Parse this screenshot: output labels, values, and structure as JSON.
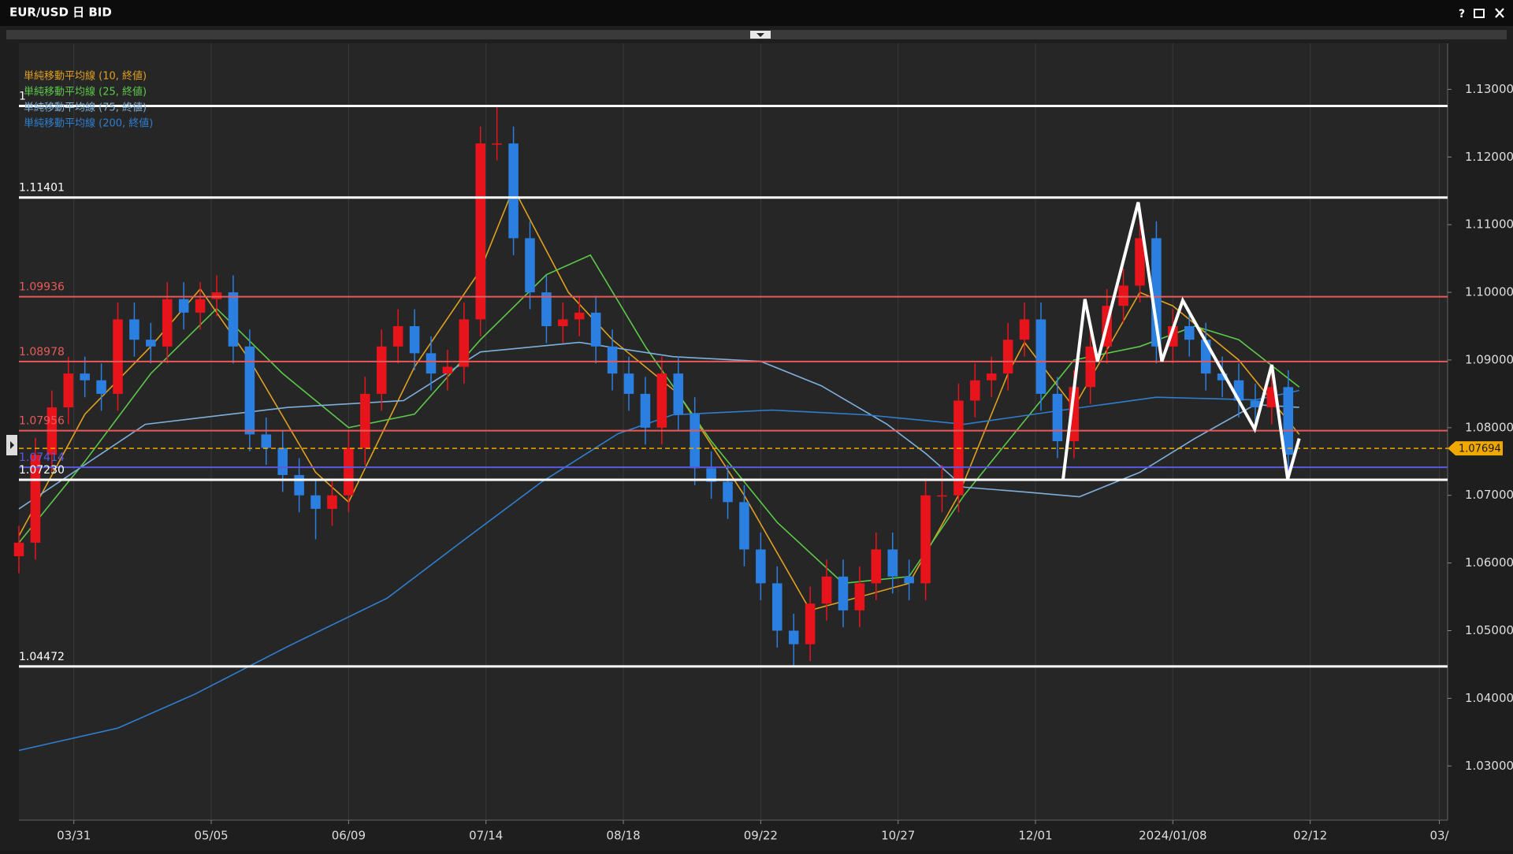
{
  "window": {
    "title": "EUR/USD 日 BID",
    "help": "?"
  },
  "chart_data": {
    "type": "candlestick",
    "up_color": "#e8141c",
    "down_color": "#2a7fe0",
    "x": [
      0,
      3,
      6,
      9,
      12,
      15,
      18,
      21,
      24,
      27,
      30,
      33,
      36,
      39,
      42,
      45,
      48,
      51,
      54,
      57,
      60,
      63,
      66,
      69,
      72,
      75,
      78,
      81,
      84,
      87,
      90,
      93,
      96,
      99,
      102,
      105,
      108,
      111,
      114,
      117,
      120,
      123,
      126,
      129,
      132,
      135,
      138,
      141,
      144,
      147,
      150,
      153,
      156,
      159,
      162,
      165,
      168,
      171,
      174,
      177,
      180,
      183,
      186,
      189,
      192,
      195,
      198,
      201,
      204,
      207,
      210,
      213,
      216,
      219,
      222,
      225,
      228,
      231
    ],
    "ohlc": [
      [
        1.061,
        1.0655,
        1.0585,
        1.063
      ],
      [
        1.063,
        1.0785,
        1.0605,
        1.076
      ],
      [
        1.076,
        1.0855,
        1.0735,
        1.083
      ],
      [
        1.083,
        1.0905,
        1.0805,
        1.088
      ],
      [
        1.088,
        1.0905,
        1.0845,
        1.087
      ],
      [
        1.087,
        1.0895,
        1.0825,
        1.085
      ],
      [
        1.085,
        1.0985,
        1.0825,
        1.096
      ],
      [
        1.096,
        1.0985,
        1.0905,
        1.093
      ],
      [
        1.093,
        1.0955,
        1.0895,
        1.092
      ],
      [
        1.092,
        1.1015,
        1.0895,
        1.099
      ],
      [
        1.099,
        1.1015,
        1.0945,
        1.097
      ],
      [
        1.097,
        1.1015,
        1.0945,
        1.099
      ],
      [
        1.099,
        1.1025,
        1.0965,
        1.1
      ],
      [
        1.1,
        1.1025,
        1.0895,
        1.092
      ],
      [
        1.092,
        1.0945,
        1.0765,
        1.079
      ],
      [
        1.079,
        1.0815,
        1.0745,
        1.077
      ],
      [
        1.077,
        1.0795,
        1.0705,
        1.073
      ],
      [
        1.073,
        1.0755,
        1.0675,
        1.07
      ],
      [
        1.07,
        1.0725,
        1.0635,
        1.068
      ],
      [
        1.068,
        1.0725,
        1.0655,
        1.07
      ],
      [
        1.07,
        1.0795,
        1.0675,
        1.077
      ],
      [
        1.077,
        1.0875,
        1.0745,
        1.085
      ],
      [
        1.085,
        1.0945,
        1.0825,
        1.092
      ],
      [
        1.092,
        1.0975,
        1.0895,
        1.095
      ],
      [
        1.095,
        1.0975,
        1.0885,
        1.091
      ],
      [
        1.091,
        1.0935,
        1.0855,
        1.088
      ],
      [
        1.088,
        1.0915,
        1.0855,
        1.089
      ],
      [
        1.089,
        1.0985,
        1.0865,
        1.096
      ],
      [
        1.096,
        1.1245,
        1.0935,
        1.122
      ],
      [
        1.122,
        1.1275,
        1.1195,
        1.122
      ],
      [
        1.122,
        1.1245,
        1.1055,
        1.108
      ],
      [
        1.108,
        1.1105,
        1.0975,
        1.1
      ],
      [
        1.1,
        1.1025,
        1.0925,
        1.095
      ],
      [
        1.095,
        1.0985,
        1.0925,
        1.096
      ],
      [
        1.096,
        1.0995,
        1.0935,
        1.097
      ],
      [
        1.097,
        1.0995,
        1.0895,
        1.092
      ],
      [
        1.092,
        1.0945,
        1.0855,
        1.088
      ],
      [
        1.088,
        1.0905,
        1.0825,
        1.085
      ],
      [
        1.085,
        1.0875,
        1.0775,
        1.08
      ],
      [
        1.08,
        1.0905,
        1.0775,
        1.088
      ],
      [
        1.088,
        1.0905,
        1.0795,
        1.082
      ],
      [
        1.082,
        1.0845,
        1.0715,
        1.074
      ],
      [
        1.074,
        1.0765,
        1.0695,
        1.072
      ],
      [
        1.072,
        1.0745,
        1.0665,
        1.069
      ],
      [
        1.069,
        1.0715,
        1.0595,
        1.062
      ],
      [
        1.062,
        1.0645,
        1.0545,
        1.057
      ],
      [
        1.057,
        1.0595,
        1.0475,
        1.05
      ],
      [
        1.05,
        1.0525,
        1.0448,
        1.048
      ],
      [
        1.048,
        1.0565,
        1.0455,
        1.054
      ],
      [
        1.054,
        1.0605,
        1.0515,
        1.058
      ],
      [
        1.058,
        1.0605,
        1.0505,
        1.053
      ],
      [
        1.053,
        1.0595,
        1.0505,
        1.057
      ],
      [
        1.057,
        1.0645,
        1.0545,
        1.062
      ],
      [
        1.062,
        1.0645,
        1.0555,
        1.058
      ],
      [
        1.058,
        1.0605,
        1.0545,
        1.057
      ],
      [
        1.057,
        1.0725,
        1.0545,
        1.07
      ],
      [
        1.07,
        1.0745,
        1.0675,
        1.07
      ],
      [
        1.07,
        1.0865,
        1.0675,
        1.084
      ],
      [
        1.084,
        1.0895,
        1.0815,
        1.087
      ],
      [
        1.087,
        1.0905,
        1.0845,
        1.088
      ],
      [
        1.088,
        1.0955,
        1.0855,
        1.093
      ],
      [
        1.093,
        1.0985,
        1.0905,
        1.096
      ],
      [
        1.096,
        1.0985,
        1.0825,
        1.085
      ],
      [
        1.085,
        1.0875,
        1.0755,
        1.078
      ],
      [
        1.078,
        1.0885,
        1.0755,
        1.086
      ],
      [
        1.086,
        1.0945,
        1.0835,
        1.092
      ],
      [
        1.092,
        1.1005,
        1.0895,
        1.098
      ],
      [
        1.098,
        1.1035,
        1.0955,
        1.101
      ],
      [
        1.101,
        1.112,
        1.0985,
        1.108
      ],
      [
        1.108,
        1.1105,
        1.0895,
        1.092
      ],
      [
        1.092,
        1.0975,
        1.0895,
        1.095
      ],
      [
        1.095,
        1.0975,
        1.0905,
        1.093
      ],
      [
        1.093,
        1.0955,
        1.0855,
        1.088
      ],
      [
        1.088,
        1.0905,
        1.0845,
        1.087
      ],
      [
        1.087,
        1.0895,
        1.0815,
        1.084
      ],
      [
        1.084,
        1.0865,
        1.0805,
        1.083
      ],
      [
        1.083,
        1.0885,
        1.0805,
        1.086
      ],
      [
        1.086,
        1.0885,
        1.0725,
        1.076
      ]
    ],
    "xlim": [
      0,
      260
    ],
    "xticks": [
      {
        "value": 10,
        "label": "03/31"
      },
      {
        "value": 35,
        "label": "05/05"
      },
      {
        "value": 60,
        "label": "06/09"
      },
      {
        "value": 85,
        "label": "07/14"
      },
      {
        "value": 110,
        "label": "08/18"
      },
      {
        "value": 135,
        "label": "09/22"
      },
      {
        "value": 160,
        "label": "10/27"
      },
      {
        "value": 185,
        "label": "12/01"
      },
      {
        "value": 210,
        "label": "2024/01/08"
      },
      {
        "value": 235,
        "label": "02/12"
      },
      {
        "value": 258.5,
        "label": "03/"
      }
    ],
    "ylim": [
      1.022,
      1.1368
    ],
    "yticks": [
      {
        "value": 1.03,
        "label": "1.03000"
      },
      {
        "value": 1.04,
        "label": "1.04000"
      },
      {
        "value": 1.05,
        "label": "1.05000"
      },
      {
        "value": 1.06,
        "label": "1.06000"
      },
      {
        "value": 1.07,
        "label": "1.07000"
      },
      {
        "value": 1.08,
        "label": "1.08000"
      },
      {
        "value": 1.09,
        "label": "1.09000"
      },
      {
        "value": 1.1,
        "label": "1.10000"
      },
      {
        "value": 1.11,
        "label": "1.11000"
      },
      {
        "value": 1.12,
        "label": "1.12000"
      },
      {
        "value": 1.13,
        "label": "1.13000"
      }
    ],
    "grid": true,
    "series": [
      {
        "name": "単純移動平均線 (10, 終値)",
        "color": "#e0a020",
        "x": [
          0,
          12,
          24,
          33,
          42,
          54,
          60,
          72,
          84,
          90,
          100,
          108,
          120,
          132,
          144,
          153,
          162,
          171,
          180,
          183,
          192,
          204,
          210,
          222,
          233
        ],
        "values": [
          1.064,
          1.082,
          1.092,
          1.1005,
          1.09,
          1.0734,
          1.069,
          1.089,
          1.1033,
          1.1154,
          1.1,
          1.093,
          1.085,
          1.07,
          1.053,
          1.055,
          1.057,
          1.07,
          1.088,
          1.0926,
          1.083,
          1.1,
          1.098,
          1.09,
          1.079
        ]
      },
      {
        "name": "単純移動平均線 (25, 終値)",
        "color": "#5cc94a",
        "x": [
          0,
          12,
          24,
          36,
          48,
          60,
          72,
          84,
          96,
          104,
          114,
          126,
          138,
          150,
          162,
          172,
          182,
          192,
          204,
          214,
          222,
          233
        ],
        "values": [
          1.063,
          1.075,
          1.088,
          1.0976,
          1.088,
          1.08,
          1.082,
          1.093,
          1.1026,
          1.1055,
          1.092,
          1.078,
          1.066,
          1.057,
          1.058,
          1.07,
          1.08,
          1.09,
          1.092,
          1.095,
          1.093,
          1.086
        ]
      },
      {
        "name": "単純移動平均線 (75, 終値)",
        "color": "#7fb0dc",
        "x": [
          0,
          23,
          49,
          70,
          84,
          102,
          119,
          135,
          146,
          158,
          165,
          172,
          183,
          193,
          204,
          214,
          225,
          233
        ],
        "values": [
          1.068,
          1.0805,
          1.083,
          1.084,
          1.0912,
          1.0926,
          1.0905,
          1.0898,
          1.0862,
          1.0805,
          1.0762,
          1.0712,
          1.0705,
          1.0698,
          1.0734,
          1.0784,
          1.0834,
          1.083
        ]
      },
      {
        "name": "単純移動平均線 (200, 終値)",
        "color": "#2f7fd0",
        "x": [
          0,
          18,
          32,
          49,
          67,
          81,
          95,
          109,
          119,
          137,
          154,
          172,
          190,
          207,
          225,
          233
        ],
        "values": [
          1.0323,
          1.0356,
          1.0406,
          1.0477,
          1.0548,
          1.0634,
          1.0719,
          1.0791,
          1.0819,
          1.0826,
          1.0819,
          1.0805,
          1.0826,
          1.0845,
          1.0841,
          1.0855
        ]
      }
    ],
    "levels": [
      {
        "value": 1.12755,
        "label": "1",
        "color": "#ffffff"
      },
      {
        "value": 1.11401,
        "color": "#ffffff"
      },
      {
        "value": 1.09936,
        "color": "#e85a5a"
      },
      {
        "value": 1.08978,
        "color": "#e85a5a"
      },
      {
        "value": 1.07956,
        "color": "#e85a5a"
      },
      {
        "value": 1.07414,
        "color": "#5a5ae0"
      },
      {
        "value": 1.0723,
        "label": "1.07230",
        "color": "#ffffff"
      },
      {
        "value": 1.04472,
        "color": "#ffffff"
      }
    ],
    "last_price": 1.07694,
    "last_price_color": "#f0a800",
    "pattern": {
      "color": "#ffffff",
      "x": [
        190,
        194,
        196.3,
        203.7,
        208,
        211.8,
        224.9,
        228,
        230.9,
        233
      ],
      "values": [
        1.0722,
        1.099,
        1.0898,
        1.1133,
        1.0898,
        1.0988,
        1.0798,
        1.0893,
        1.0724,
        1.0784
      ]
    }
  }
}
